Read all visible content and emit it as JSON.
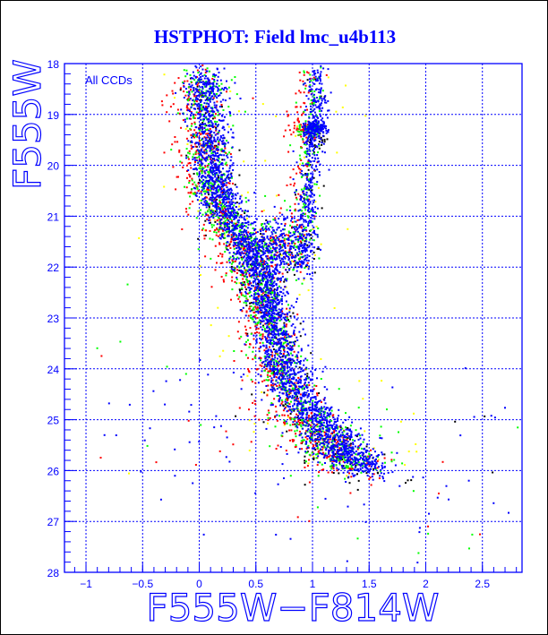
{
  "chart_data": {
    "type": "scatter",
    "title": "HSTPHOT: Field lmc_u4b113",
    "xlabel": "F555W−F814W",
    "ylabel": "F555W",
    "annotation": "All CCDs",
    "xlim": [
      -1.19,
      2.85
    ],
    "ylim": [
      28,
      18
    ],
    "y_inverted": true,
    "grid": true,
    "x_ticks": [
      -1,
      -0.5,
      0,
      0.5,
      1,
      1.5,
      2,
      2.5
    ],
    "x_tick_labels": [
      "−1",
      "−0.5",
      "0",
      "0.5",
      "1",
      "1.5",
      "2",
      "2.5"
    ],
    "y_ticks": [
      18,
      19,
      20,
      21,
      22,
      23,
      24,
      25,
      26,
      27,
      28
    ],
    "y_tick_labels": [
      "18",
      "19",
      "20",
      "21",
      "22",
      "23",
      "24",
      "25",
      "26",
      "27",
      "28"
    ],
    "series_colors": {
      "blue": "#0000ff",
      "green": "#00ff00",
      "red": "#ff0000",
      "black": "#000000",
      "yellow": "#ffff00"
    },
    "components": [
      {
        "name": "main-sequence",
        "n": 5200,
        "ridge": [
          [
            0.05,
            18.2
          ],
          [
            0.1,
            19.5
          ],
          [
            0.15,
            20.5
          ],
          [
            0.35,
            21.3
          ],
          [
            0.55,
            22.2
          ],
          [
            0.65,
            23.0
          ],
          [
            0.75,
            24.0
          ],
          [
            0.95,
            24.8
          ],
          [
            1.2,
            25.5
          ],
          [
            1.5,
            25.95
          ]
        ],
        "sigma_color": 0.09,
        "sigma_mag": 0.12
      },
      {
        "name": "red-giant-branch",
        "n": 700,
        "ridge": [
          [
            0.92,
            22.0
          ],
          [
            0.95,
            21.0
          ],
          [
            0.98,
            20.0
          ],
          [
            1.02,
            19.0
          ],
          [
            1.05,
            18.1
          ]
        ],
        "sigma_color": 0.05,
        "sigma_mag": 0.1
      },
      {
        "name": "red-clump",
        "n": 260,
        "ridge": [
          [
            0.95,
            19.3
          ],
          [
            1.1,
            19.3
          ]
        ],
        "sigma_color": 0.03,
        "sigma_mag": 0.07
      },
      {
        "name": "subgiant-branch",
        "n": 500,
        "ridge": [
          [
            0.55,
            21.6
          ],
          [
            0.9,
            21.6
          ]
        ],
        "sigma_color": 0.08,
        "sigma_mag": 0.3
      },
      {
        "name": "field-scatter",
        "n": 160,
        "ridge": [
          [
            -0.6,
            24.5
          ],
          [
            2.7,
            26.5
          ]
        ],
        "sigma_color": 0.5,
        "sigma_mag": 1.0
      }
    ],
    "color_weights": {
      "blue": 0.55,
      "green": 0.2,
      "red": 0.18,
      "black": 0.05,
      "yellow": 0.02
    }
  }
}
